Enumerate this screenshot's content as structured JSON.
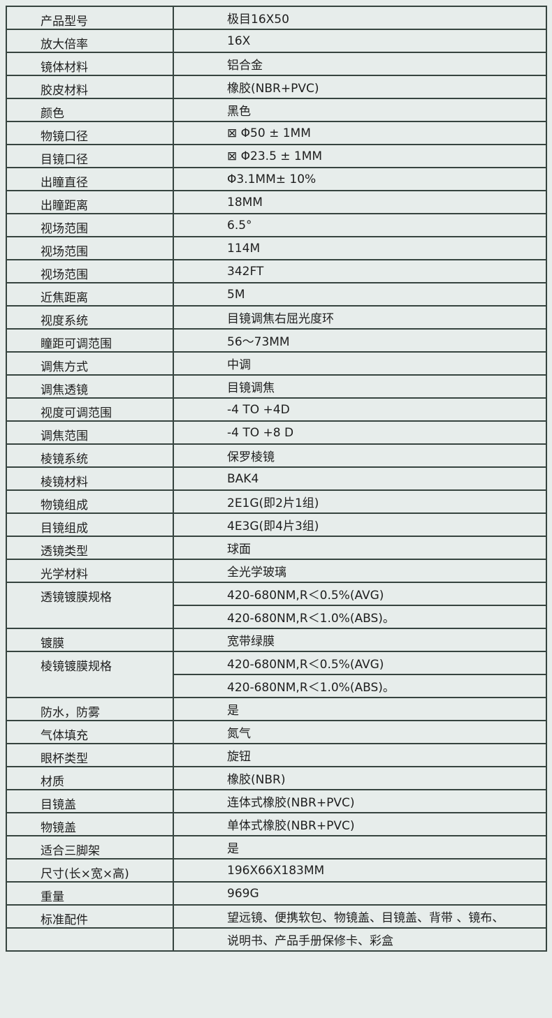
{
  "table": {
    "rows": [
      {
        "label": "产品型号",
        "values": [
          "极目16X50"
        ]
      },
      {
        "label": "放大倍率",
        "values": [
          "16X"
        ]
      },
      {
        "label": "镜体材料",
        "values": [
          "铝合金"
        ]
      },
      {
        "label": "胶皮材料",
        "values": [
          "橡胶(NBR+PVC)"
        ]
      },
      {
        "label": "颜色",
        "values": [
          "黑色"
        ]
      },
      {
        "label": "物镜口径",
        "values": [
          "⊠ Φ50 ± 1MM"
        ]
      },
      {
        "label": "目镜口径",
        "values": [
          "⊠ Φ23.5 ± 1MM"
        ]
      },
      {
        "label": "出瞳直径",
        "values": [
          "Φ3.1MM± 10%"
        ]
      },
      {
        "label": "出瞳距离",
        "values": [
          "18MM"
        ]
      },
      {
        "label": "视场范围",
        "values": [
          "6.5°"
        ]
      },
      {
        "label": "视场范围",
        "values": [
          "114M"
        ]
      },
      {
        "label": "视场范围",
        "values": [
          "342FT"
        ]
      },
      {
        "label": "近焦距离",
        "values": [
          "5M"
        ]
      },
      {
        "label": "视度系统",
        "values": [
          "目镜调焦右屈光度环"
        ]
      },
      {
        "label": "瞳距可调范围",
        "values": [
          "56～73MM"
        ]
      },
      {
        "label": "调焦方式",
        "values": [
          "中调"
        ]
      },
      {
        "label": "调焦透镜",
        "values": [
          "目镜调焦"
        ]
      },
      {
        "label": "视度可调范围",
        "values": [
          "-4 TO +4D"
        ]
      },
      {
        "label": "调焦范围",
        "values": [
          "-4 TO +8 D"
        ]
      },
      {
        "label": "棱镜系统",
        "values": [
          "保罗棱镜"
        ]
      },
      {
        "label": "棱镜材料",
        "values": [
          "BAK4"
        ]
      },
      {
        "label": "物镜组成",
        "values": [
          "2E1G(即2片1组)"
        ]
      },
      {
        "label": "目镜组成",
        "values": [
          "4E3G(即4片3组)"
        ]
      },
      {
        "label": "透镜类型",
        "values": [
          "球面"
        ]
      },
      {
        "label": "光学材料",
        "values": [
          "全光学玻璃"
        ]
      },
      {
        "label": "透镜镀膜规格",
        "values": [
          "420-680NM,R＜0.5%(AVG)",
          "420-680NM,R＜1.0%(ABS)。"
        ]
      },
      {
        "label": "镀膜",
        "values": [
          "宽带绿膜"
        ]
      },
      {
        "label": "棱镜镀膜规格",
        "values": [
          "420-680NM,R＜0.5%(AVG)",
          "420-680NM,R＜1.0%(ABS)。"
        ]
      },
      {
        "label": "防水，防雾",
        "values": [
          "是"
        ]
      },
      {
        "label": "气体填充",
        "values": [
          "氮气"
        ]
      },
      {
        "label": "眼杯类型",
        "values": [
          "旋钮"
        ]
      },
      {
        "label": "材质",
        "values": [
          "橡胶(NBR)"
        ]
      },
      {
        "label": "目镜盖",
        "values": [
          "连体式橡胶(NBR+PVC)"
        ]
      },
      {
        "label": "物镜盖",
        "values": [
          "单体式橡胶(NBR+PVC)"
        ]
      },
      {
        "label": "适合三脚架",
        "values": [
          "是"
        ]
      },
      {
        "label": "尺寸(长×宽×高)",
        "values": [
          "196X66X183MM"
        ]
      },
      {
        "label": "重量",
        "values": [
          "969G"
        ]
      },
      {
        "label": "标准配件",
        "values": [
          "望远镜、便携软包、物镜盖、目镜盖、背带 、镜布、"
        ]
      },
      {
        "label": null,
        "values": [
          "说明书、产品手册保修卡、彩盒"
        ]
      }
    ]
  }
}
